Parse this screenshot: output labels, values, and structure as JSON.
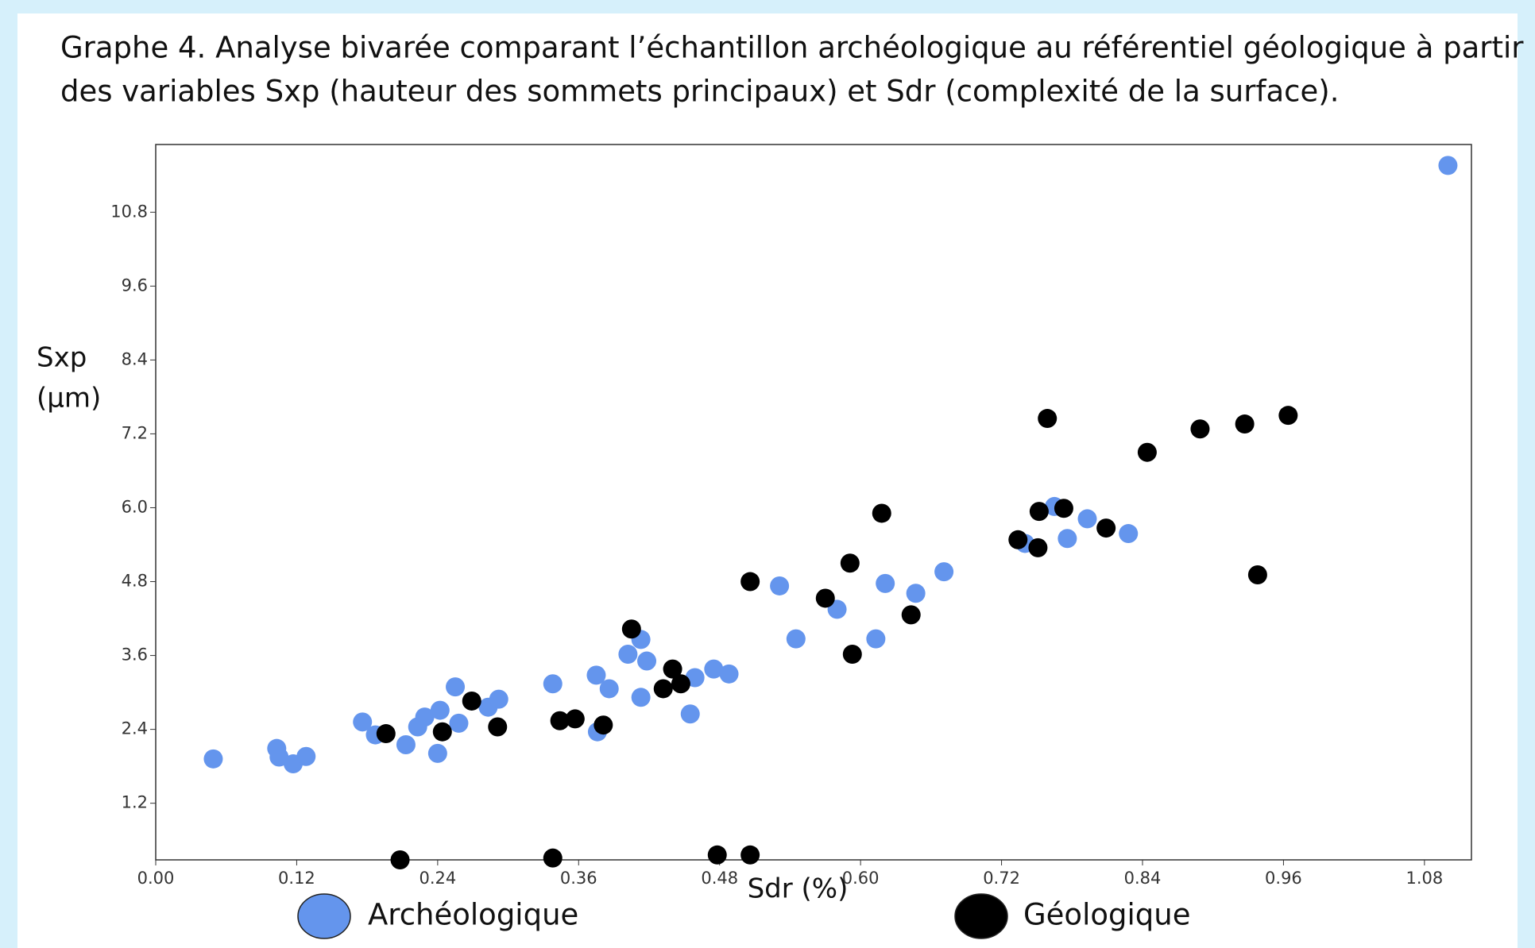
{
  "chart_data": {
    "type": "scatter",
    "title": [
      "Graphe 4. Analyse bivarée comparant l’échantillon archéologique au référentiel géologique à partir",
      "des variables Sxp (hauteur des sommets principaux) et Sdr (complexité de la surface)."
    ],
    "xlabel": "Sdr (%)",
    "ylabel": [
      "Sxp",
      "(µm)"
    ],
    "xlim": [
      0,
      1.12
    ],
    "ylim": [
      0.28,
      11.9
    ],
    "xticks": [
      {
        "value": 0,
        "label": "0.00"
      },
      0.12,
      0.24,
      0.36,
      0.48,
      {
        "value": 0.6,
        "label": "0.60"
      },
      0.72,
      0.84,
      0.96,
      1.08
    ],
    "yticks": [
      1.2,
      2.4,
      3.6,
      4.8,
      {
        "value": 6,
        "label": "6.0"
      },
      7.2,
      8.4,
      9.6,
      10.8
    ],
    "series": [
      {
        "name": "Archéologique",
        "color": "#6495ed",
        "x": [
          0.049,
          0.103,
          0.105,
          0.117,
          0.128,
          0.176,
          0.187,
          0.213,
          0.223,
          0.229,
          0.242,
          0.24,
          0.255,
          0.258,
          0.283,
          0.292,
          0.338,
          0.375,
          0.376,
          0.386,
          0.402,
          0.413,
          0.418,
          0.413,
          0.455,
          0.459,
          0.475,
          0.488,
          0.531,
          0.545,
          0.58,
          0.613,
          0.621,
          0.647,
          0.671,
          0.74,
          0.765,
          0.776,
          0.793,
          0.828,
          1.1
        ],
        "y": [
          1.92,
          2.09,
          1.95,
          1.84,
          1.96,
          2.52,
          2.31,
          2.15,
          2.44,
          2.6,
          2.71,
          2.01,
          3.09,
          2.5,
          2.76,
          2.89,
          3.14,
          3.28,
          2.36,
          3.06,
          3.62,
          3.86,
          3.51,
          2.92,
          2.65,
          3.24,
          3.38,
          3.3,
          4.73,
          3.87,
          4.35,
          3.87,
          4.77,
          4.61,
          4.96,
          5.42,
          6.02,
          5.5,
          5.82,
          5.58,
          11.56
        ]
      },
      {
        "name": "Géologique",
        "color": "#000000",
        "x": [
          0.196,
          0.208,
          0.244,
          0.269,
          0.291,
          0.338,
          0.344,
          0.357,
          0.381,
          0.405,
          0.432,
          0.44,
          0.447,
          0.478,
          0.506,
          0.506,
          0.57,
          0.591,
          0.593,
          0.618,
          0.643,
          0.734,
          0.751,
          0.752,
          0.759,
          0.773,
          0.809,
          0.844,
          0.889,
          0.927,
          0.938,
          0.964
        ],
        "y": [
          2.33,
          0.28,
          2.36,
          2.86,
          2.44,
          0.31,
          2.54,
          2.57,
          2.47,
          4.03,
          3.06,
          3.38,
          3.14,
          0.36,
          4.8,
          0.36,
          4.53,
          5.1,
          3.62,
          5.91,
          4.26,
          5.48,
          5.35,
          5.94,
          7.45,
          5.99,
          5.67,
          6.9,
          7.28,
          7.36,
          4.91,
          7.5
        ]
      }
    ]
  }
}
